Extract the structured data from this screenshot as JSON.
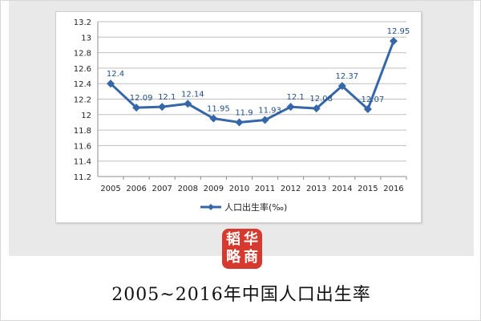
{
  "caption": "2005~2016年中国人口出生率",
  "logo": {
    "chars": [
      "韬",
      "华",
      "略",
      "商"
    ],
    "color": "#d63a2e"
  },
  "colors": {
    "series": "#3567a8",
    "label": "#1f4e8c",
    "grid": "#bfbfbf",
    "axis_text": "#222222"
  },
  "chart_data": {
    "type": "line",
    "categories": [
      "2005",
      "2006",
      "2007",
      "2008",
      "2009",
      "2010",
      "2011",
      "2012",
      "2013",
      "2014",
      "2015",
      "2016"
    ],
    "series": [
      {
        "name": "人口出生率(‰)",
        "values": [
          12.4,
          12.09,
          12.1,
          12.14,
          11.95,
          11.9,
          11.93,
          12.1,
          12.08,
          12.37,
          12.07,
          12.95
        ],
        "marker": "diamond"
      }
    ],
    "yticks": [
      "11.2",
      "11.4",
      "11.6",
      "11.8",
      "12",
      "12.2",
      "12.4",
      "12.6",
      "12.8",
      "13",
      "13.2"
    ],
    "ylim": [
      11.2,
      13.2
    ],
    "grid": true,
    "legend_position": "bottom",
    "title": "",
    "xlabel": "",
    "ylabel": ""
  }
}
